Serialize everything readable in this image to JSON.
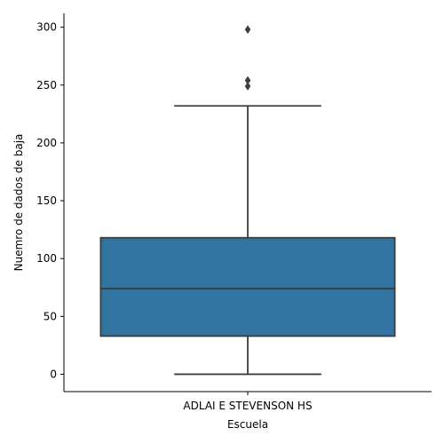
{
  "chart_data": {
    "type": "box",
    "xlabel": "Escuela",
    "ylabel": "Nuemro de dados de baja",
    "categories": [
      "ADLAI E STEVENSON HS"
    ],
    "ylim": [
      -15,
      312
    ],
    "yticks": [
      0,
      50,
      100,
      150,
      200,
      250,
      300
    ],
    "grid": false,
    "boxes": [
      {
        "category": "ADLAI E STEVENSON HS",
        "whisker_low": 0,
        "q1": 33,
        "median": 74,
        "q3": 118,
        "whisker_high": 232,
        "outliers": [
          249,
          254,
          298
        ]
      }
    ],
    "colors": {
      "box_fill": "#3274a1",
      "lines": "#3d3d3d",
      "axis": "#000000"
    }
  }
}
